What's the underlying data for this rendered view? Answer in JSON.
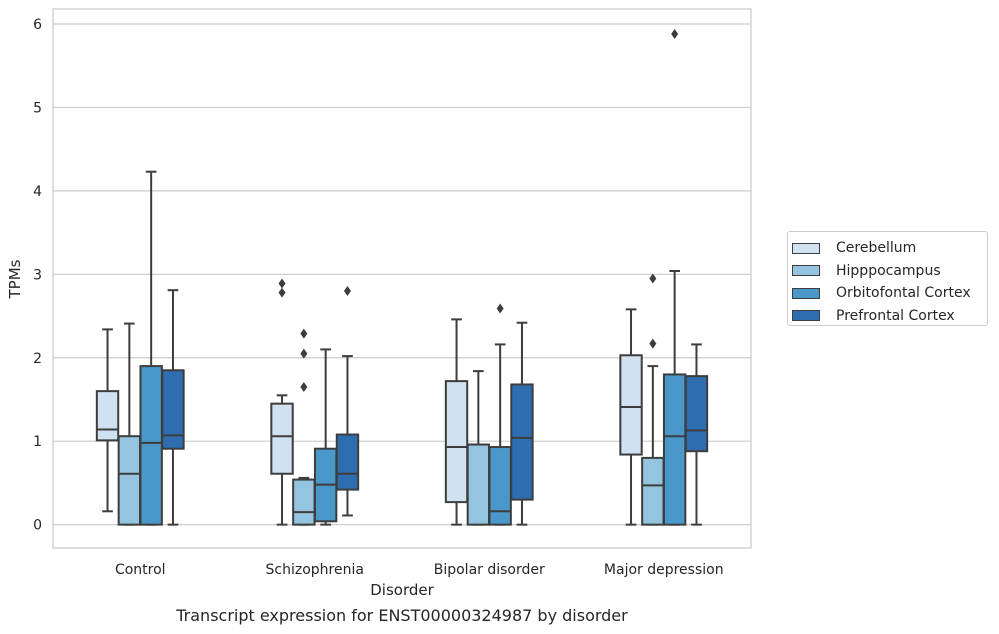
{
  "chart_data": {
    "type": "box",
    "xlabel": "Disorder",
    "ylabel": "TPMs",
    "caption": "Transcript expression for ENST00000324987 by disorder",
    "ylim": [
      -0.28,
      6.18
    ],
    "yticks": [
      0,
      1,
      2,
      3,
      4,
      5,
      6
    ],
    "grid": "horizontal",
    "legend_placement": "right",
    "categories": [
      "Control",
      "Schizophrenia",
      "Bipolar disorder",
      "Major depression"
    ],
    "series": [
      {
        "name": "Cerebellum",
        "color": "#d0e1f2",
        "boxes": [
          {
            "whisker_low": 0.16,
            "q1": 1.01,
            "median": 1.14,
            "q3": 1.6,
            "whisker_high": 2.34,
            "outliers": []
          },
          {
            "whisker_low": 0.0,
            "q1": 0.61,
            "median": 1.06,
            "q3": 1.45,
            "whisker_high": 1.55,
            "outliers": [
              2.78,
              2.89
            ]
          },
          {
            "whisker_low": 0.0,
            "q1": 0.27,
            "median": 0.93,
            "q3": 1.72,
            "whisker_high": 2.46,
            "outliers": []
          },
          {
            "whisker_low": 0.0,
            "q1": 0.84,
            "median": 1.41,
            "q3": 2.03,
            "whisker_high": 2.58,
            "outliers": []
          }
        ]
      },
      {
        "name": "Hipppocampus",
        "color": "#94c4df",
        "boxes": [
          {
            "whisker_low": 0.0,
            "q1": 0.0,
            "median": 0.61,
            "q3": 1.06,
            "whisker_high": 2.41,
            "outliers": []
          },
          {
            "whisker_low": 0.0,
            "q1": 0.0,
            "median": 0.15,
            "q3": 0.54,
            "whisker_high": 0.56,
            "outliers": [
              1.65,
              2.05,
              2.29
            ]
          },
          {
            "whisker_low": 0.0,
            "q1": 0.0,
            "median": 0.96,
            "q3": 0.96,
            "whisker_high": 1.84,
            "outliers": []
          },
          {
            "whisker_low": 0.0,
            "q1": 0.0,
            "median": 0.47,
            "q3": 0.8,
            "whisker_high": 1.9,
            "outliers": [
              2.17,
              2.95
            ]
          }
        ]
      },
      {
        "name": "Orbitofontal Cortex",
        "color": "#4a98c9",
        "boxes": [
          {
            "whisker_low": 0.0,
            "q1": 0.0,
            "median": 0.98,
            "q3": 1.9,
            "whisker_high": 4.23,
            "outliers": []
          },
          {
            "whisker_low": 0.0,
            "q1": 0.04,
            "median": 0.48,
            "q3": 0.91,
            "whisker_high": 2.1,
            "outliers": []
          },
          {
            "whisker_low": 0.0,
            "q1": 0.0,
            "median": 0.16,
            "q3": 0.93,
            "whisker_high": 2.16,
            "outliers": [
              2.59
            ]
          },
          {
            "whisker_low": 0.0,
            "q1": 0.0,
            "median": 1.06,
            "q3": 1.8,
            "whisker_high": 3.04,
            "outliers": [
              5.88
            ]
          }
        ]
      },
      {
        "name": "Prefrontal Cortex",
        "color": "#2e6eb0",
        "boxes": [
          {
            "whisker_low": 0.0,
            "q1": 0.91,
            "median": 1.07,
            "q3": 1.85,
            "whisker_high": 2.81,
            "outliers": []
          },
          {
            "whisker_low": 0.11,
            "q1": 0.42,
            "median": 0.61,
            "q3": 1.08,
            "whisker_high": 2.02,
            "outliers": [
              2.8
            ]
          },
          {
            "whisker_low": 0.0,
            "q1": 0.3,
            "median": 1.04,
            "q3": 1.68,
            "whisker_high": 2.42,
            "outliers": []
          },
          {
            "whisker_low": 0.0,
            "q1": 0.88,
            "median": 1.13,
            "q3": 1.78,
            "whisker_high": 2.16,
            "outliers": []
          }
        ]
      }
    ]
  }
}
